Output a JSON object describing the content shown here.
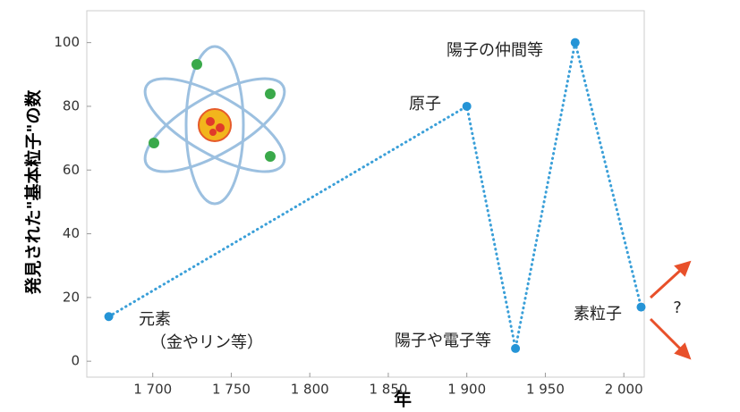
{
  "chart_data": {
    "type": "line",
    "x": [
      1672,
      1900,
      1931,
      1969,
      2011
    ],
    "values": [
      14,
      80,
      4,
      100,
      17
    ],
    "color": "#3a9fd8",
    "xlim": [
      1658,
      2013
    ],
    "ylim": [
      -5,
      110
    ],
    "xticks": [
      {
        "value": 1700,
        "label": "1 700"
      },
      {
        "value": 1750,
        "label": "1 750"
      },
      {
        "value": 1800,
        "label": "1 800"
      },
      {
        "value": 1850,
        "label": "1 850"
      },
      {
        "value": 1900,
        "label": "1 900"
      },
      {
        "value": 1950,
        "label": "1 950"
      },
      {
        "value": 2000,
        "label": "2 000"
      }
    ],
    "yticks": [
      0,
      20,
      40,
      60,
      80,
      100
    ],
    "xlabel": "年",
    "ylabel": "発見された\"基本粒子\"の数",
    "annotations": [
      "元素",
      "（金やリン等）",
      "原子",
      "陽子や電子等",
      "陽子の仲間等",
      "素粒子",
      "?"
    ]
  }
}
